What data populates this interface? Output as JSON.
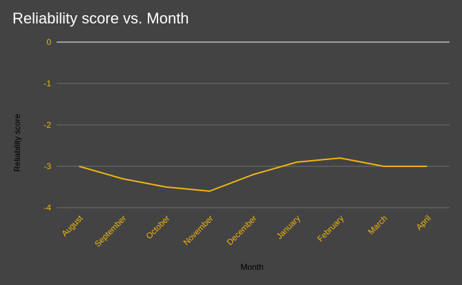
{
  "chart_data": {
    "type": "line",
    "title": "Reliability score vs. Month",
    "xlabel": "Month",
    "ylabel": "Reliability score",
    "categories": [
      "August",
      "September",
      "October",
      "November",
      "December",
      "January",
      "February",
      "March",
      "April"
    ],
    "series": [
      {
        "values": [
          -3.0,
          -3.3,
          -3.5,
          -3.6,
          -3.2,
          -2.9,
          -2.8,
          -3.0,
          -3.0
        ]
      }
    ],
    "yticks": [
      0,
      -1,
      -2,
      -3,
      -4
    ],
    "ylim": [
      -4,
      0
    ],
    "grid": true,
    "legend": "none",
    "colors": {
      "background": "#434343",
      "line": "#f1b711",
      "tick_labels": "#f1b711",
      "axis_title": "#000000",
      "title": "#ffffff",
      "gridline": "#707070",
      "zero_line": "#ffffff"
    }
  }
}
